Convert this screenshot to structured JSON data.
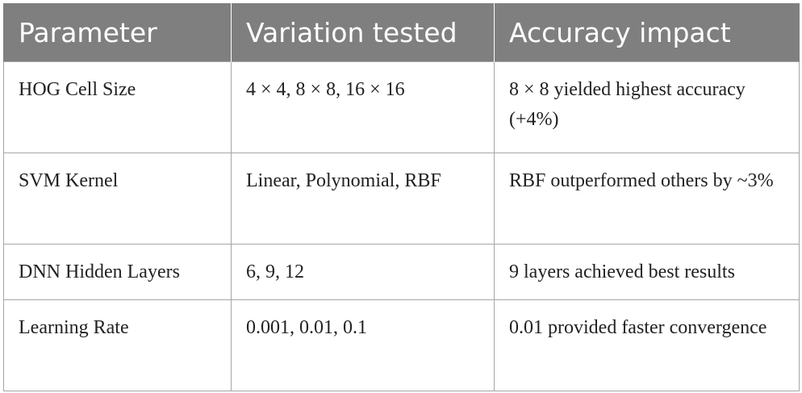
{
  "table": {
    "headers": [
      "Parameter",
      "Variation tested",
      "Accuracy impact"
    ],
    "rows": [
      [
        "HOG Cell Size",
        "4 × 4, 8 × 8, 16 × 16",
        "8 × 8 yielded highest accuracy (+4%)"
      ],
      [
        "SVM Kernel",
        "Linear, Polynomial, RBF",
        "RBF outperformed others by ~3%"
      ],
      [
        "DNN Hidden Layers",
        "6, 9, 12",
        "9 layers achieved best results"
      ],
      [
        "Learning Rate",
        "0.001, 0.01, 0.1",
        "0.01 provided faster convergence"
      ]
    ]
  },
  "colors": {
    "header_bg": "#7f7f7f",
    "header_text": "#ffffff",
    "border": "#a6a6a6",
    "body_text": "#222222"
  }
}
